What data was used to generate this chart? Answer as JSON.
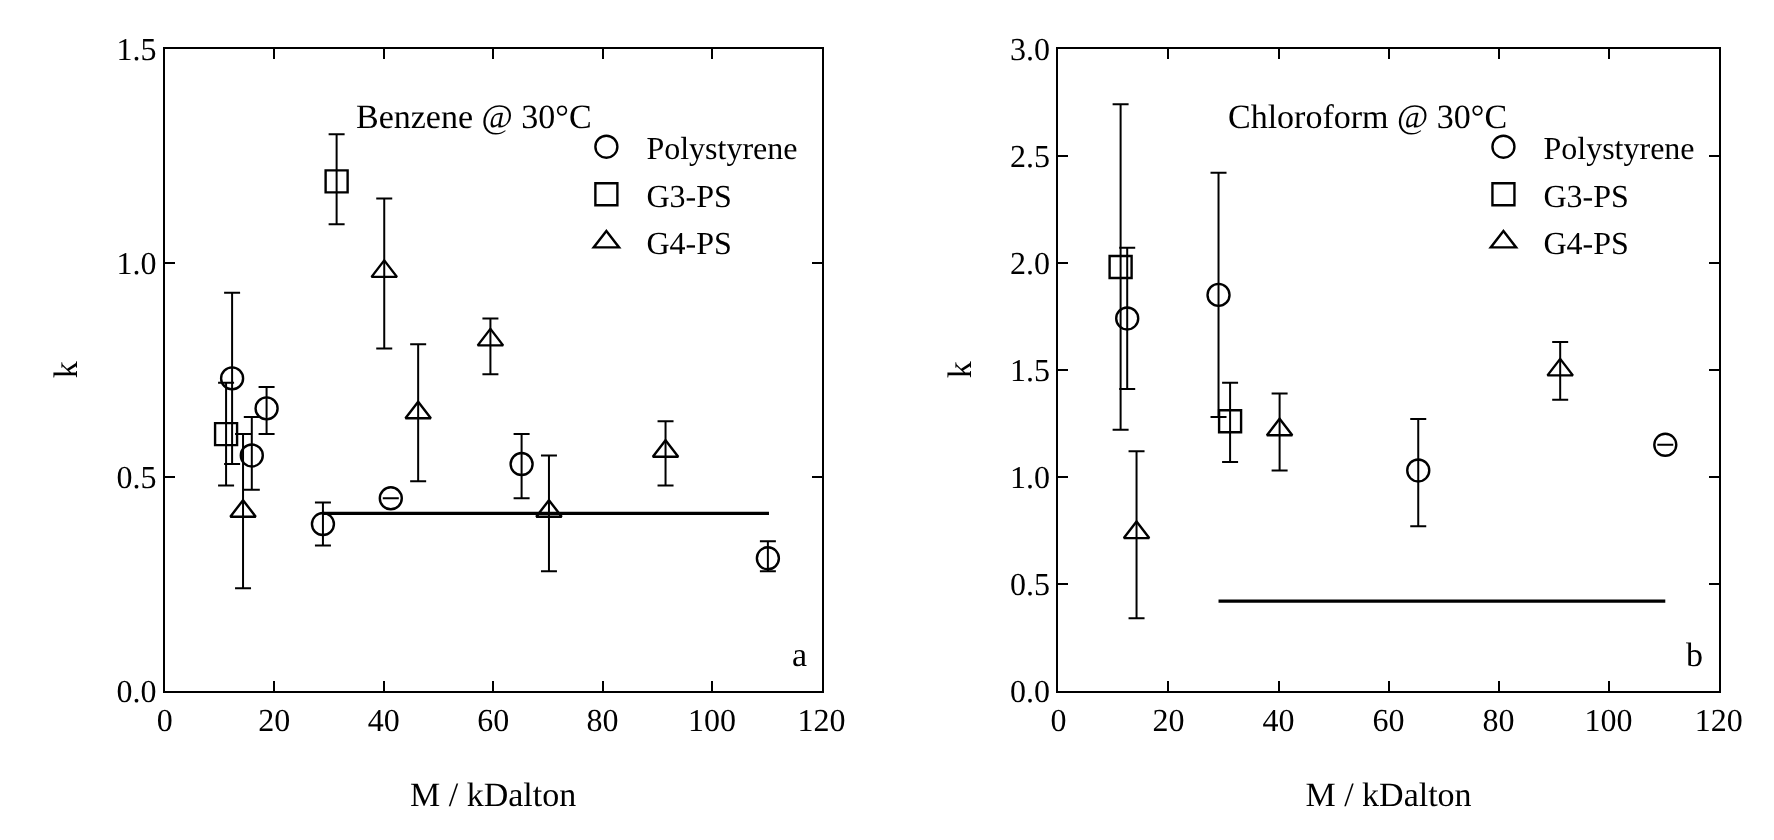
{
  "chart_data": [
    {
      "type": "scatter",
      "xlabel": "M / kDalton",
      "ylabel": "k",
      "annotations": [
        "Benzene @ 30°C",
        "a"
      ],
      "xlim": [
        0,
        120
      ],
      "xticks": [
        0,
        20,
        40,
        60,
        80,
        100,
        120
      ],
      "ylim": [
        0,
        1.5
      ],
      "yticks": [
        {
          "value": 0,
          "label": "0.0"
        },
        {
          "value": 0.5,
          "label": "0.5"
        },
        {
          "value": 1.0,
          "label": "1.0"
        },
        {
          "value": 1.5,
          "label": "1.5"
        }
      ],
      "legend": "top right",
      "series": [
        {
          "name": "Polystyrene",
          "color": "#000000",
          "marker": "circle",
          "x": [
            12.3,
            15.9,
            18.6,
            28.9,
            41.3,
            65.2,
            110.2
          ],
          "values": [
            0.73,
            0.55,
            0.66,
            0.39,
            0.45,
            0.53,
            0.31
          ],
          "errors": [
            [
              0.53,
              0.93
            ],
            [
              0.47,
              0.64
            ],
            [
              0.6,
              0.71
            ],
            [
              0.34,
              0.44
            ],
            null,
            [
              0.45,
              0.6
            ],
            [
              0.28,
              0.35
            ]
          ]
        },
        {
          "name": "G3-PS",
          "color": "#000000",
          "marker": "square",
          "x": [
            11.2,
            31.4
          ],
          "values": [
            0.6,
            1.19
          ],
          "errors": [
            [
              0.48,
              0.72
            ],
            [
              1.09,
              1.3
            ]
          ]
        },
        {
          "name": "G4-PS",
          "color": "#000000",
          "marker": "triangle",
          "x": [
            14.3,
            40.1,
            46.3,
            59.5,
            70.2,
            91.5
          ],
          "values": [
            0.42,
            0.98,
            0.65,
            0.82,
            0.42,
            0.56
          ],
          "errors": [
            [
              0.24,
              0.6
            ],
            [
              0.8,
              1.15
            ],
            [
              0.49,
              0.81
            ],
            [
              0.74,
              0.87
            ],
            [
              0.28,
              0.55
            ],
            [
              0.48,
              0.63
            ]
          ]
        },
        {
          "type": "line",
          "color": "#000000",
          "marker": "none",
          "x": [
            28.9,
            110.4
          ],
          "values": [
            0.415,
            0.415
          ]
        }
      ]
    },
    {
      "type": "scatter",
      "xlabel": "M / kDalton",
      "ylabel": "k",
      "annotations": [
        "Chloroform @ 30°C",
        "b"
      ],
      "xlim": [
        0,
        120
      ],
      "xticks": [
        0,
        20,
        40,
        60,
        80,
        100,
        120
      ],
      "ylim": [
        0,
        3.0
      ],
      "yticks": [
        {
          "value": 0,
          "label": "0.0"
        },
        {
          "value": 0.5,
          "label": "0.5"
        },
        {
          "value": 1.0,
          "label": "1.0"
        },
        {
          "value": 1.5,
          "label": "1.5"
        },
        {
          "value": 2.0,
          "label": "2.0"
        },
        {
          "value": 2.5,
          "label": "2.5"
        },
        {
          "value": 3.0,
          "label": "3.0"
        }
      ],
      "legend": "top right",
      "series": [
        {
          "name": "Polystyrene",
          "color": "#000000",
          "marker": "circle",
          "x": [
            12.5,
            29.1,
            65.4,
            110.3
          ],
          "values": [
            1.74,
            1.85,
            1.03,
            1.15
          ],
          "errors": [
            [
              1.41,
              2.07
            ],
            [
              1.28,
              2.42
            ],
            [
              0.77,
              1.27
            ],
            null
          ]
        },
        {
          "name": "G3-PS",
          "color": "#000000",
          "marker": "square",
          "x": [
            11.3,
            31.2
          ],
          "values": [
            1.98,
            1.26
          ],
          "errors": [
            [
              1.22,
              2.74
            ],
            [
              1.07,
              1.44
            ]
          ]
        },
        {
          "name": "G4-PS",
          "color": "#000000",
          "marker": "triangle",
          "x": [
            14.2,
            40.2,
            91.2
          ],
          "values": [
            0.74,
            1.22,
            1.5
          ],
          "errors": [
            [
              0.34,
              1.12
            ],
            [
              1.03,
              1.39
            ],
            [
              1.36,
              1.63
            ]
          ]
        },
        {
          "type": "line",
          "color": "#000000",
          "marker": "none",
          "x": [
            29.1,
            110.3
          ],
          "values": [
            0.42,
            0.42
          ]
        }
      ]
    }
  ]
}
